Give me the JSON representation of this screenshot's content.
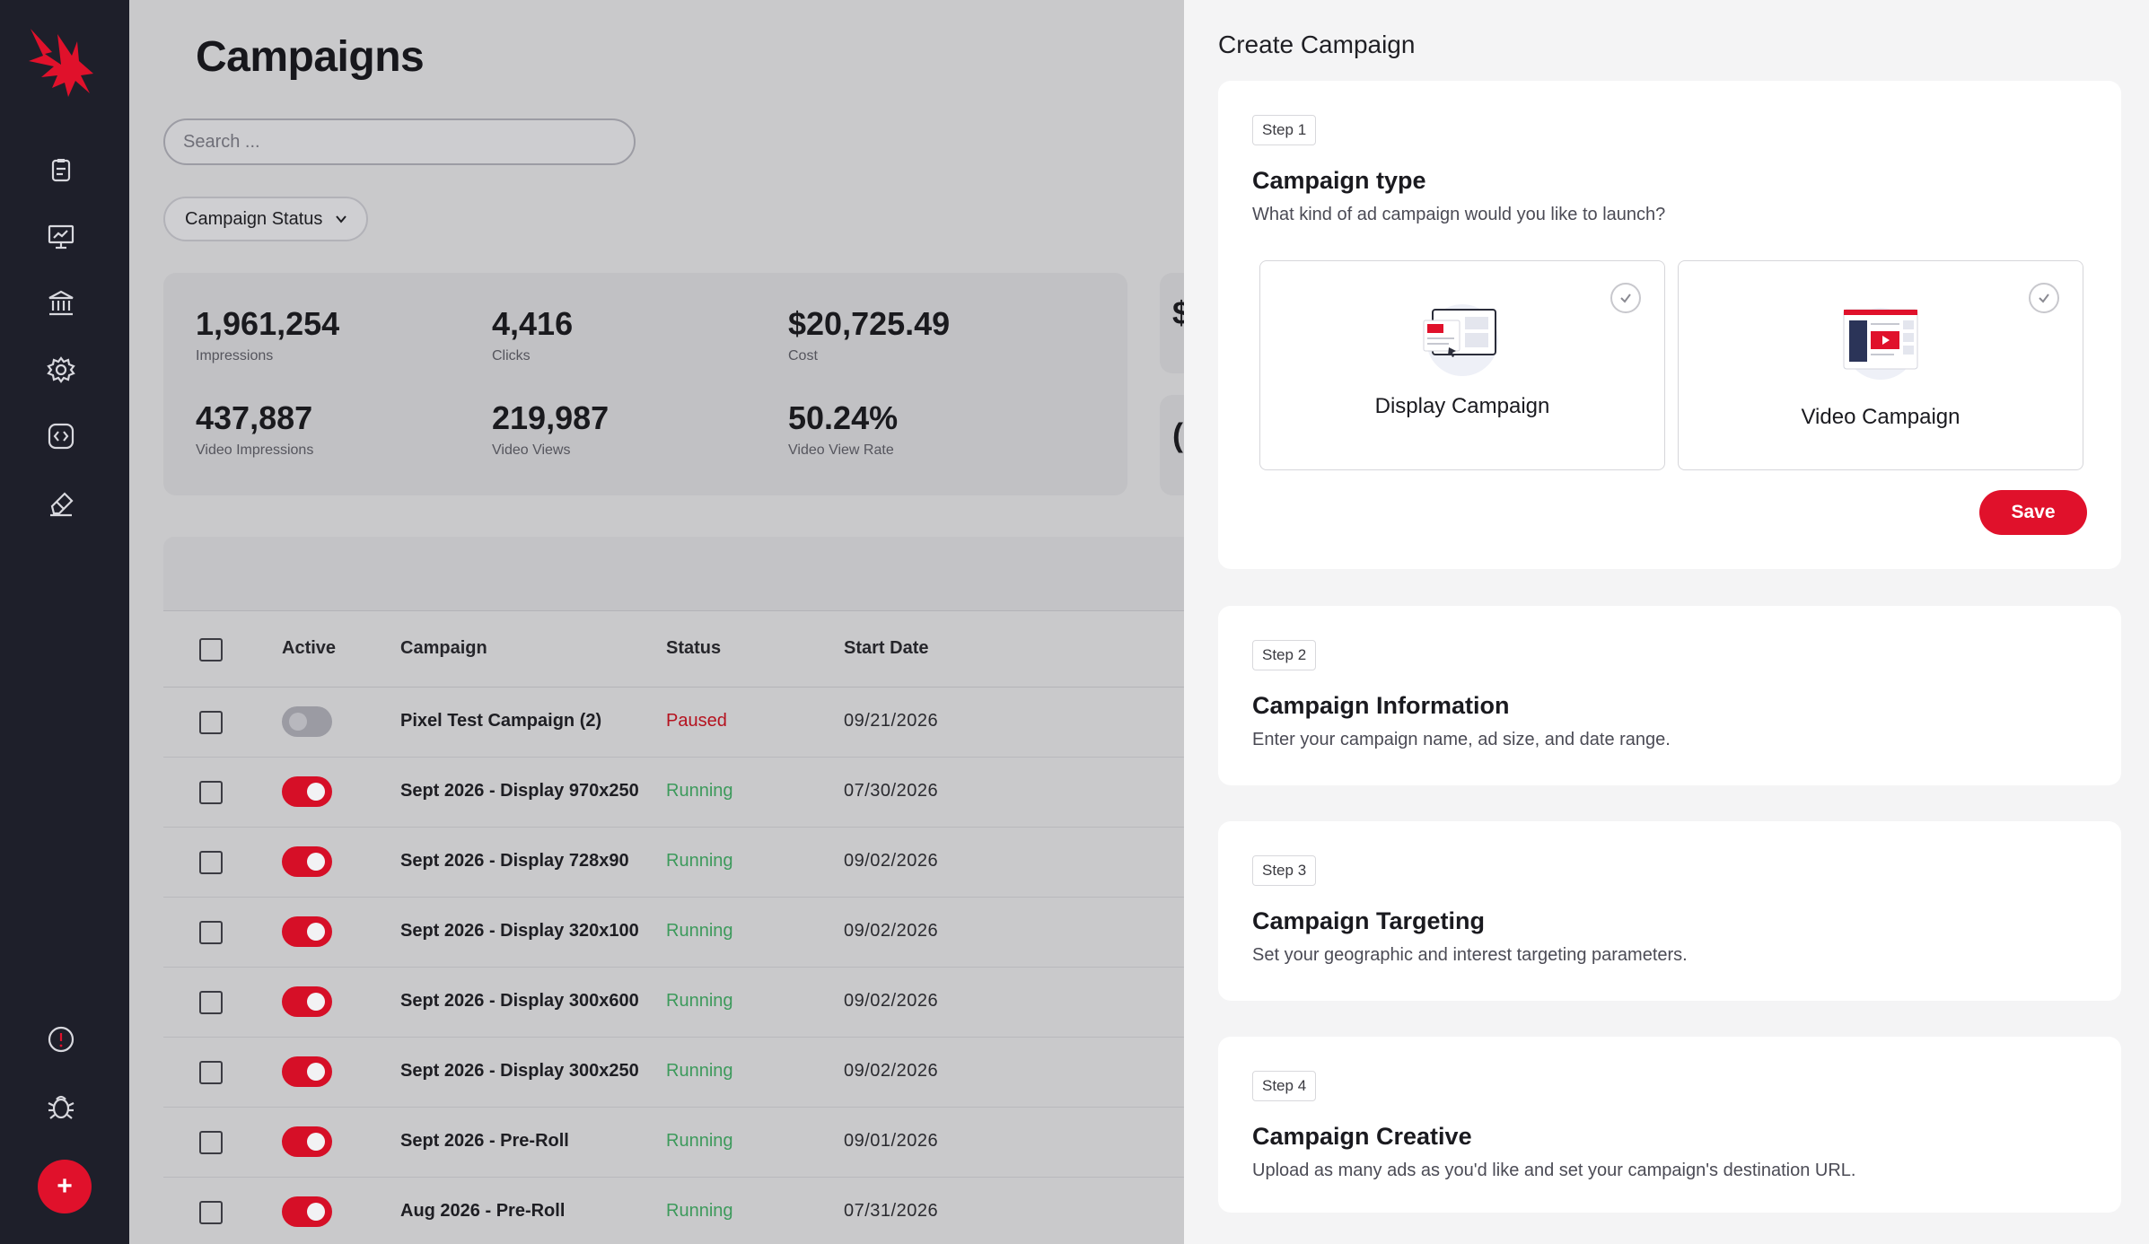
{
  "app": {
    "brand_color": "#e0112b",
    "sidebar": {
      "logo": "bird-logo-icon",
      "items": [
        {
          "name": "clipboard-icon"
        },
        {
          "name": "presentation-chart-icon"
        },
        {
          "name": "bank-icon"
        },
        {
          "name": "gear-icon"
        },
        {
          "name": "code-icon"
        },
        {
          "name": "eraser-icon"
        }
      ],
      "bottom_items": [
        {
          "name": "alert-icon"
        },
        {
          "name": "bug-icon"
        }
      ],
      "fab_label": "+"
    }
  },
  "main": {
    "title": "Campaigns",
    "search": {
      "placeholder": "Search ...",
      "value": ""
    },
    "filter": {
      "label": "Campaign Status"
    },
    "stats": [
      {
        "value": "1,961,254",
        "label": "Impressions"
      },
      {
        "value": "4,416",
        "label": "Clicks"
      },
      {
        "value": "$20,725.49",
        "label": "Cost"
      },
      {
        "value": "437,887",
        "label": "Video Impressions"
      },
      {
        "value": "219,987",
        "label": "Video Views"
      },
      {
        "value": "50.24%",
        "label": "Video View Rate"
      }
    ],
    "side_stats": [
      "$",
      "("
    ],
    "table": {
      "columns": {
        "active": "Active",
        "campaign": "Campaign",
        "status": "Status",
        "start_date": "Start Date"
      },
      "rows": [
        {
          "active": false,
          "campaign": "Pixel Test Campaign (2)",
          "status": "Paused",
          "start_date": "09/21/2026"
        },
        {
          "active": true,
          "campaign": "Sept 2026 - Display 970x250",
          "status": "Running",
          "start_date": "07/30/2026"
        },
        {
          "active": true,
          "campaign": "Sept 2026 - Display 728x90",
          "status": "Running",
          "start_date": "09/02/2026"
        },
        {
          "active": true,
          "campaign": "Sept 2026 - Display 320x100",
          "status": "Running",
          "start_date": "09/02/2026"
        },
        {
          "active": true,
          "campaign": "Sept 2026 - Display 300x600",
          "status": "Running",
          "start_date": "09/02/2026"
        },
        {
          "active": true,
          "campaign": "Sept 2026 - Display 300x250",
          "status": "Running",
          "start_date": "09/02/2026"
        },
        {
          "active": true,
          "campaign": "Sept 2026 - Pre-Roll",
          "status": "Running",
          "start_date": "09/01/2026"
        },
        {
          "active": true,
          "campaign": "Aug 2026 - Pre-Roll",
          "status": "Running",
          "start_date": "07/31/2026"
        }
      ]
    }
  },
  "panel": {
    "title": "Create Campaign",
    "steps": [
      {
        "badge": "Step 1",
        "title": "Campaign type",
        "description": "What kind of ad campaign would you like to launch?"
      },
      {
        "badge": "Step 2",
        "title": "Campaign Information",
        "description": "Enter your campaign name, ad size, and date range."
      },
      {
        "badge": "Step 3",
        "title": "Campaign Targeting",
        "description": "Set your geographic and interest targeting parameters."
      },
      {
        "badge": "Step 4",
        "title": "Campaign Creative",
        "description": "Upload as many ads as you'd like and set your campaign's destination URL."
      }
    ],
    "campaign_types": [
      {
        "label": "Display Campaign",
        "selected": false
      },
      {
        "label": "Video Campaign",
        "selected": false
      }
    ],
    "save_label": "Save"
  }
}
